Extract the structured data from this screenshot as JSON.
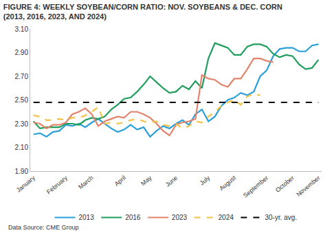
{
  "chart_data": {
    "type": "line",
    "title": "FIGURE 4: WEEKLY SOYBEAN/CORN RATIO: NOV. SOYBEANS & DEC. CORN\n(2013, 2016, 2023, AND 2024)",
    "source": "Data Source: CME Group",
    "categories": [
      "January",
      null,
      null,
      null,
      null,
      "February",
      null,
      null,
      null,
      "March",
      null,
      null,
      null,
      null,
      "April",
      null,
      null,
      null,
      "May",
      null,
      null,
      null,
      "June",
      null,
      null,
      null,
      null,
      "July",
      null,
      null,
      null,
      "August",
      null,
      null,
      null,
      null,
      "September",
      null,
      null,
      null,
      "October",
      null,
      null,
      null,
      "November"
    ],
    "series": [
      {
        "name": "2013",
        "color": "#2b9fd8",
        "line_style": "solid",
        "values": [
          2.21,
          2.22,
          2.19,
          2.23,
          2.24,
          2.29,
          2.28,
          2.3,
          2.27,
          2.31,
          2.34,
          2.3,
          2.26,
          2.23,
          2.25,
          2.29,
          2.25,
          2.27,
          2.19,
          2.24,
          2.28,
          2.26,
          2.3,
          2.33,
          2.29,
          2.38,
          2.42,
          2.32,
          2.36,
          2.45,
          2.5,
          2.52,
          2.56,
          2.54,
          2.57,
          2.7,
          2.75,
          2.87,
          2.93,
          2.94,
          2.94,
          2.91,
          2.91,
          2.96,
          2.97
        ]
      },
      {
        "name": "2016",
        "color": "#1f9d5c",
        "line_style": "solid",
        "values": [
          2.32,
          2.26,
          2.27,
          2.27,
          2.27,
          2.3,
          2.3,
          2.29,
          2.33,
          2.35,
          2.34,
          2.36,
          2.42,
          2.46,
          2.51,
          2.52,
          2.57,
          2.63,
          2.7,
          2.65,
          2.6,
          2.56,
          2.57,
          2.62,
          2.59,
          2.66,
          2.6,
          2.85,
          2.98,
          2.96,
          2.94,
          2.88,
          2.88,
          2.95,
          2.97,
          2.97,
          2.95,
          2.89,
          2.86,
          2.88,
          2.87,
          2.8,
          2.76,
          2.77,
          2.84
        ]
      },
      {
        "name": "2023",
        "color": "#e2836b",
        "line_style": "solid",
        "values": [
          2.31,
          2.3,
          2.26,
          2.29,
          2.29,
          2.31,
          2.38,
          2.4,
          2.43,
          2.38,
          2.28,
          2.32,
          2.34,
          2.36,
          2.35,
          2.4,
          2.4,
          2.38,
          2.35,
          2.3,
          2.24,
          2.2,
          2.29,
          2.31,
          2.32,
          2.34,
          2.71,
          2.68,
          2.67,
          2.63,
          2.61,
          2.68,
          2.68,
          2.76,
          2.85,
          2.85,
          2.83,
          2.82,
          null,
          null,
          null,
          null,
          null,
          null,
          null
        ]
      },
      {
        "name": "2024",
        "color": "#f3c144",
        "line_style": "dash",
        "values": [
          2.37,
          2.36,
          2.33,
          2.33,
          2.34,
          2.33,
          2.35,
          2.35,
          2.37,
          2.4,
          2.44,
          2.3,
          2.31,
          2.3,
          2.31,
          2.33,
          2.34,
          2.32,
          2.31,
          2.32,
          2.29,
          2.28,
          2.3,
          2.26,
          2.28,
          2.32,
          2.31,
          2.36,
          2.4,
          2.45,
          2.48,
          2.5,
          2.46,
          2.53,
          2.55,
          2.54,
          null,
          null,
          null,
          null,
          null,
          null,
          null,
          null,
          null
        ]
      },
      {
        "name": "30-yr. avg.",
        "color": "#000000",
        "line_style": "dash",
        "values": [
          2.48,
          2.48,
          2.48,
          2.48,
          2.48,
          2.48,
          2.48,
          2.48,
          2.48,
          2.48,
          2.48,
          2.48,
          2.48,
          2.48,
          2.48,
          2.48,
          2.48,
          2.48,
          2.48,
          2.48,
          2.48,
          2.48,
          2.48,
          2.48,
          2.48,
          2.48,
          2.48,
          2.48,
          2.48,
          2.48,
          2.48,
          2.48,
          2.48,
          2.48,
          2.48,
          2.48,
          2.48,
          2.48,
          2.48,
          2.48,
          2.48,
          2.48,
          2.48,
          2.48,
          2.48
        ]
      }
    ],
    "ylim": [
      1.9,
      3.1
    ],
    "yticks": [
      {
        "value": 1.9,
        "label": "1.90"
      },
      {
        "value": 2.1,
        "label": "2.10"
      },
      {
        "value": 2.3,
        "label": "2.30"
      },
      {
        "value": 2.5,
        "label": "2.50"
      },
      {
        "value": 2.7,
        "label": "2.70"
      },
      {
        "value": 2.9,
        "label": "2.90"
      },
      {
        "value": 3.1,
        "label": "3.10"
      }
    ],
    "grid": false,
    "legend": "bottom"
  }
}
